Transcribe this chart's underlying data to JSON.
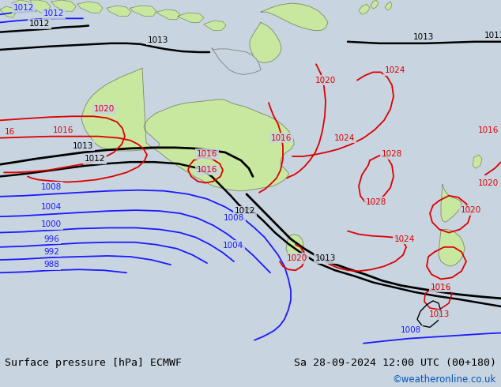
{
  "title_left": "Surface pressure [hPa] ECMWF",
  "title_right": "Sa 28-09-2024 12:00 UTC (00+180)",
  "copyright": "©weatheronline.co.uk",
  "bg_color": "#c8d4e0",
  "land_color": "#c8e8a0",
  "border_color": "#808080",
  "bottom_bar_color": "#e0e0e0",
  "black": "#000000",
  "blue": "#1a1aff",
  "red": "#dd0000",
  "cyan": "#0055bb",
  "figsize": [
    6.34,
    4.9
  ],
  "dpi": 100
}
